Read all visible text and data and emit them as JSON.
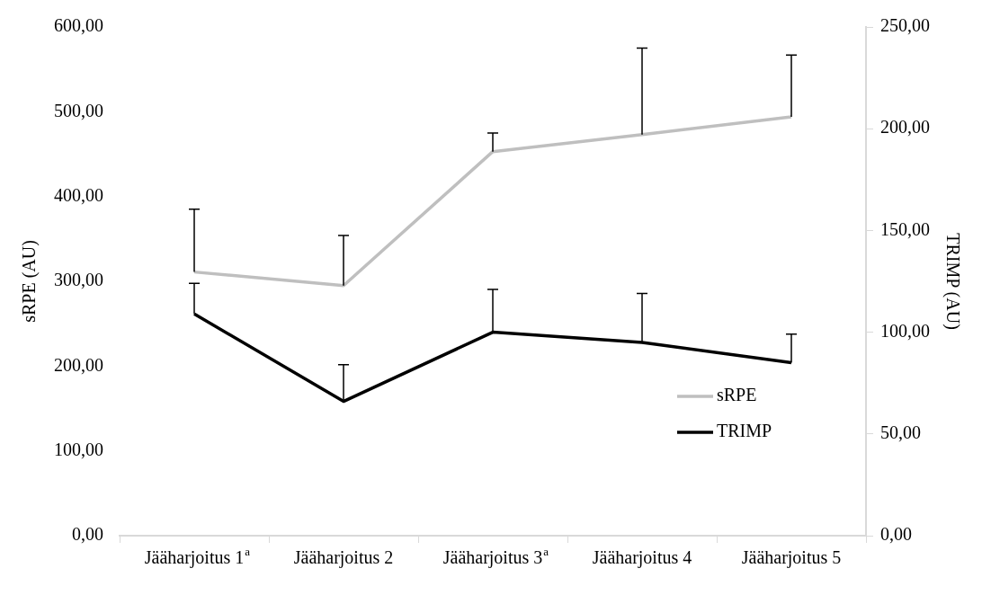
{
  "chart_data": {
    "type": "line",
    "ylabel": "sRPE (AU)",
    "y2label": "TRIMP (AU)",
    "categories": [
      "Jääharjoitus 1$^{a}$",
      "Jääharjoitus 2",
      "Jääharjoitus 3$^{a}$",
      "Jääharjoitus 4",
      "Jääharjoitus 5"
    ],
    "series": [
      {
        "name": "sRPE",
        "color": "#bfbfbf",
        "values": [
          311,
          295,
          453,
          473,
          494
        ],
        "errors": [
          [
            311,
            385
          ],
          [
            295,
            354
          ],
          [
            453,
            475
          ],
          [
            473,
            575
          ],
          [
            494,
            567
          ]
        ]
      },
      {
        "name": "TRIMP",
        "color": "#000000",
        "axis": "y2",
        "values": [
          109,
          66,
          100,
          95,
          85
        ],
        "errors": [
          [
            109,
            124
          ],
          [
            66,
            84
          ],
          [
            100,
            121
          ],
          [
            95,
            119
          ],
          [
            85,
            99
          ]
        ]
      }
    ],
    "ylim": [
      0,
      600
    ],
    "yticks": [
      {
        "value": 0,
        "label": "0,00"
      },
      {
        "value": 100,
        "label": "100,00"
      },
      {
        "value": 200,
        "label": "200,00"
      },
      {
        "value": 300,
        "label": "300,00"
      },
      {
        "value": 400,
        "label": "400,00"
      },
      {
        "value": 500,
        "label": "500,00"
      },
      {
        "value": 600,
        "label": "600,00"
      }
    ],
    "y2lim": [
      0,
      250
    ],
    "y2ticks": [
      {
        "value": 0,
        "label": "0,00"
      },
      {
        "value": 50,
        "label": "50,00"
      },
      {
        "value": 100,
        "label": "100,00"
      },
      {
        "value": 150,
        "label": "150,00"
      },
      {
        "value": 200,
        "label": "200,00"
      },
      {
        "value": 250,
        "label": "250,00"
      }
    ],
    "grid": false,
    "legend": "bottom right",
    "marker": "none",
    "line_style": "solid"
  }
}
